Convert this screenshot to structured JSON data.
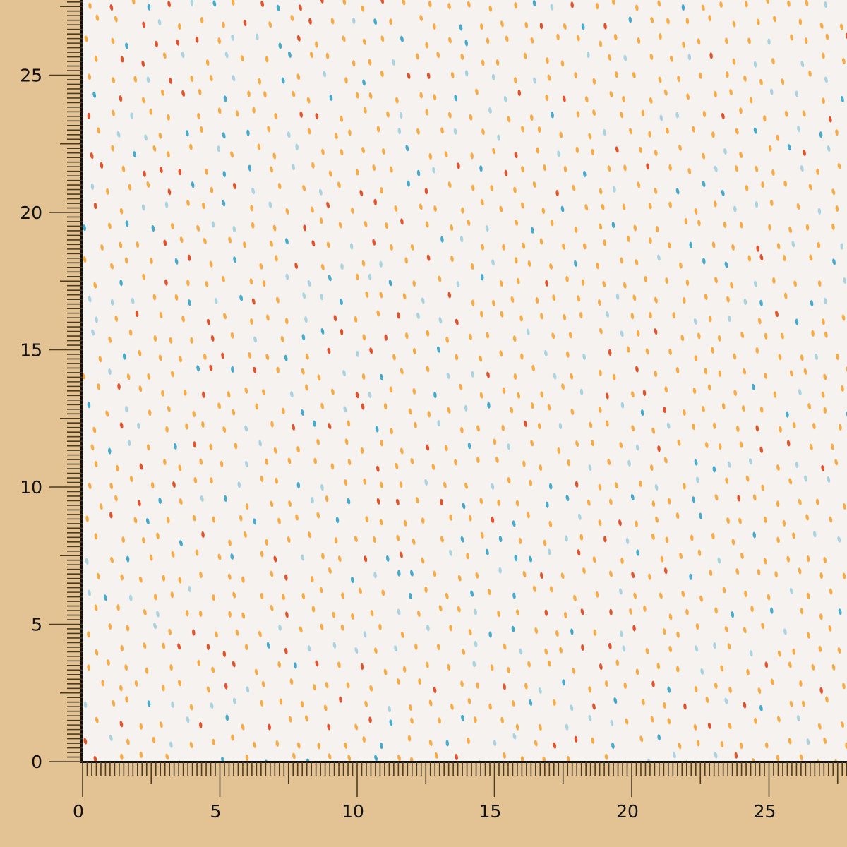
{
  "fabric": {
    "pattern": "scattered dash dots",
    "background_color": "#f6f2f0",
    "dot_colors": [
      "#f7ab45",
      "#f7ab45",
      "#f7ab45",
      "#f7ab45",
      "#f7ab45",
      "#f7ab45",
      "#e2532b",
      "#45aacb",
      "#a9d3df"
    ]
  },
  "ruler": {
    "color": "#e3c293",
    "x_labels": [
      "0",
      "5",
      "10",
      "15",
      "20",
      "25"
    ],
    "y_labels": [
      "0",
      "5",
      "10",
      "15",
      "20",
      "25"
    ]
  }
}
